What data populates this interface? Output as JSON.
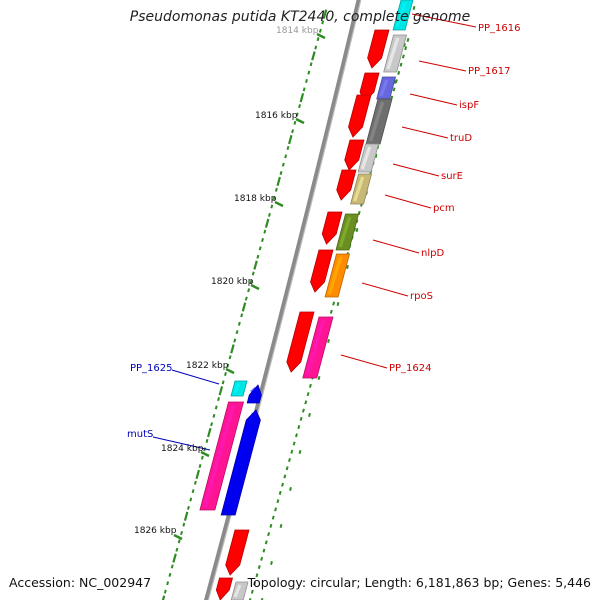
{
  "title": "Pseudomonas putida KT2440, complete genome",
  "footer": {
    "accession": "Accession: NC_002947",
    "topology": "Topology: circular; Length: 6,181,863 bp; Genes: 5,446"
  },
  "ruler": {
    "labels": [
      "1814 kbp",
      "1816 kbp",
      "1818 kbp",
      "1820 kbp",
      "1822 kbp",
      "1824 kbp",
      "1826 kbp"
    ]
  },
  "gene_labels": {
    "right": [
      "PP_1616",
      "PP_1617",
      "ispF",
      "truD",
      "surE",
      "pcm",
      "nlpD",
      "rpoS",
      "PP_1624"
    ],
    "left": [
      "PP_1625",
      "mutS"
    ]
  },
  "colors": {
    "backbone": "#8a8a8a",
    "tick": "#2e8b22",
    "cds": "#ff0000",
    "label_right": "#cc0000",
    "label_left": "#0000bb",
    "cyan": "#00e5e5",
    "light_gray": "#c8c8c8",
    "blue_purple": "#6666dd",
    "dark_gray": "#6e6e6e",
    "khaki": "#c8b878",
    "olive": "#6b8e23",
    "orange": "#ff8c00",
    "pink": "#ff1493",
    "blue": "#0000ee"
  }
}
